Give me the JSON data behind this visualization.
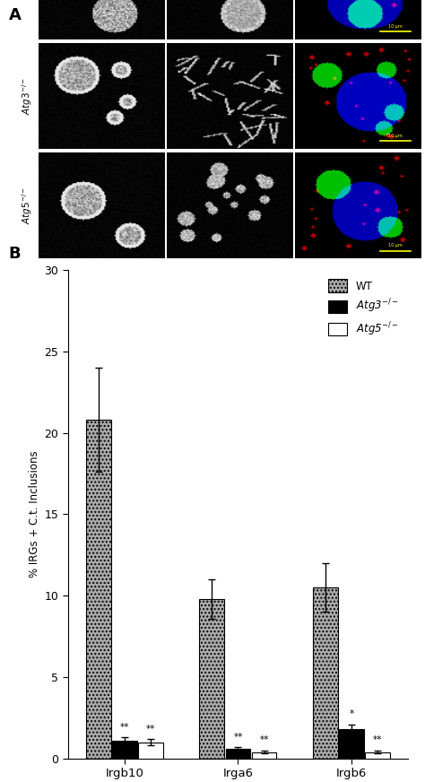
{
  "panel_A_label": "A",
  "panel_B_label": "B",
  "groups": [
    "Irgb10",
    "Irga6",
    "Irgb6"
  ],
  "series": [
    "WT",
    "Atg3−/−",
    "Atg5−/−"
  ],
  "values": [
    [
      20.8,
      1.1,
      1.0
    ],
    [
      9.8,
      0.6,
      0.4
    ],
    [
      10.5,
      1.8,
      0.4
    ]
  ],
  "errors": [
    [
      3.2,
      0.2,
      0.2
    ],
    [
      1.2,
      0.1,
      0.1
    ],
    [
      1.5,
      0.3,
      0.1
    ]
  ],
  "significance": [
    [
      "",
      "**",
      "**"
    ],
    [
      "",
      "**",
      "**"
    ],
    [
      "",
      "*",
      "**"
    ]
  ],
  "bar_colors": [
    "#aaaaaa",
    "#000000",
    "#ffffff"
  ],
  "bar_hatches": [
    "....",
    "",
    ""
  ],
  "bar_edgecolors": [
    "#000000",
    "#000000",
    "#000000"
  ],
  "ylabel": "% IRGs + C.t. Inclusions",
  "ylim": [
    0,
    30
  ],
  "yticks": [
    0,
    5,
    10,
    15,
    20,
    25,
    30
  ],
  "legend_labels": [
    "WT",
    "Atg3$^{-/-}$",
    "Atg5$^{-/-}$"
  ],
  "legend_hatches": [
    "....",
    "",
    ""
  ],
  "legend_facecolors": [
    "#aaaaaa",
    "#000000",
    "#ffffff"
  ],
  "bar_width": 0.22,
  "figure_bg": "#ffffff",
  "ct_label_color": "#00cc00",
  "irgb10_label_color": "#ff4400",
  "merge_label_color": "#ffffff"
}
